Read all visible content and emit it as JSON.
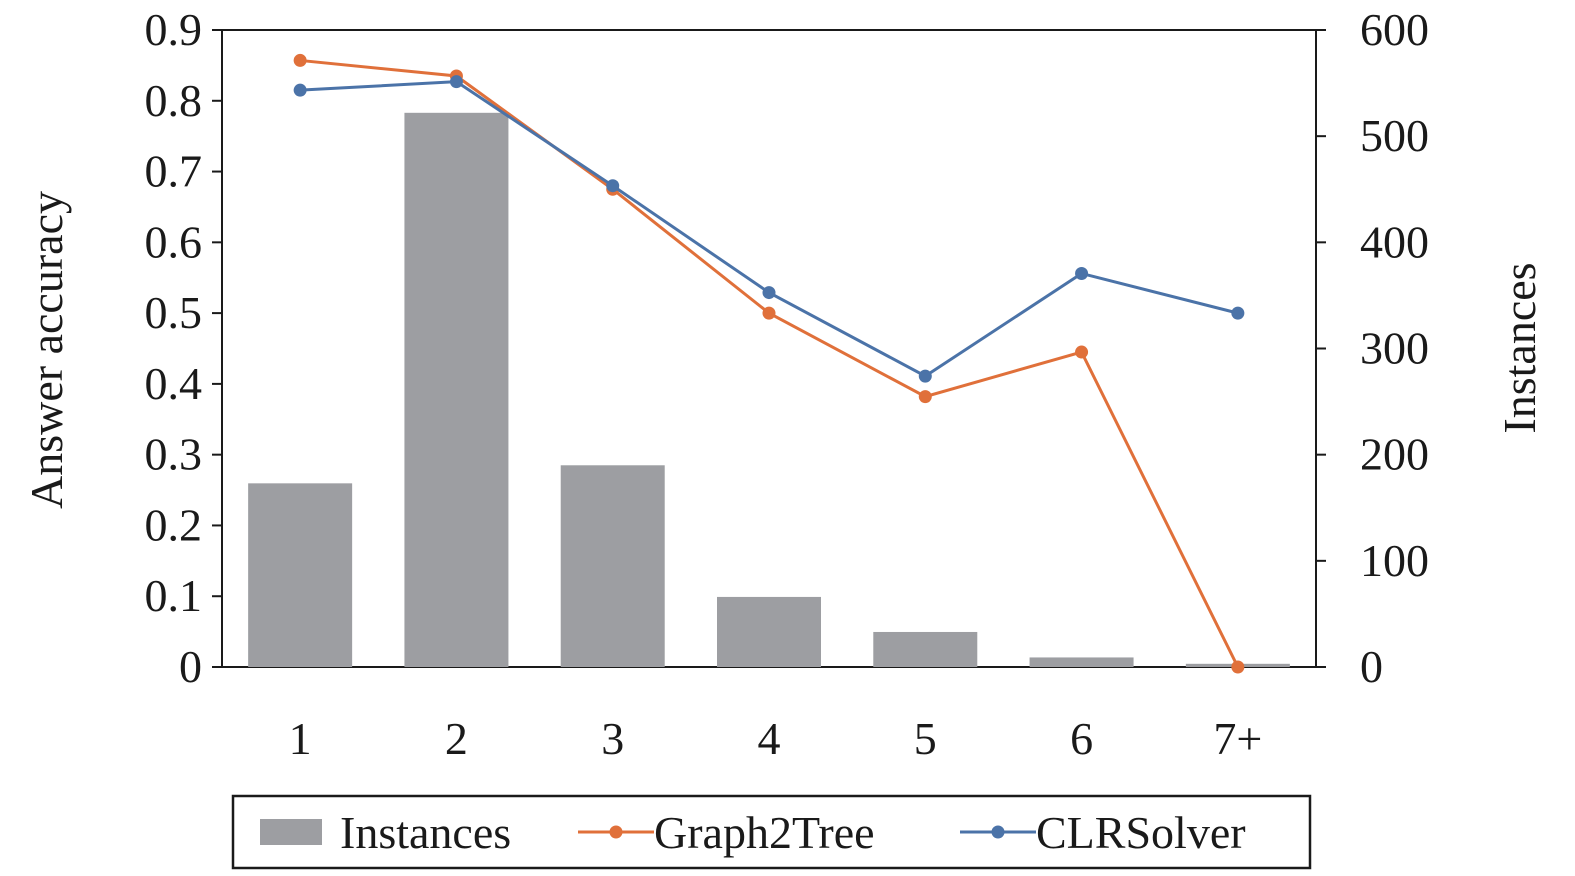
{
  "chart_data": {
    "type": "bar",
    "categories": [
      "1",
      "2",
      "3",
      "4",
      "5",
      "6",
      "7+"
    ],
    "y_left": {
      "label": "Answer accuracy",
      "ylim": [
        0,
        0.9
      ],
      "ticks": [
        "0",
        "0.1",
        "0.2",
        "0.3",
        "0.4",
        "0.5",
        "0.6",
        "0.7",
        "0.8",
        "0.9"
      ]
    },
    "y_right": {
      "label": "Instances",
      "ylim": [
        0,
        600
      ],
      "ticks": [
        "0",
        "100",
        "200",
        "300",
        "400",
        "500",
        "600"
      ]
    },
    "bars": {
      "name": "Instances",
      "axis": "right",
      "color": "#9d9ea2",
      "values": [
        173,
        522,
        190,
        66,
        33,
        9,
        3
      ]
    },
    "series": [
      {
        "name": "Graph2Tree",
        "type": "line",
        "axis": "left",
        "color": "#e0703a",
        "values": [
          0.857,
          0.835,
          0.675,
          0.5,
          0.382,
          0.445,
          0.0
        ]
      },
      {
        "name": "CLRSolver",
        "type": "line",
        "axis": "left",
        "color": "#4b73a8",
        "values": [
          0.815,
          0.827,
          0.68,
          0.529,
          0.411,
          0.556,
          0.5
        ]
      }
    ],
    "grid": false,
    "legend_position": "bottom"
  }
}
